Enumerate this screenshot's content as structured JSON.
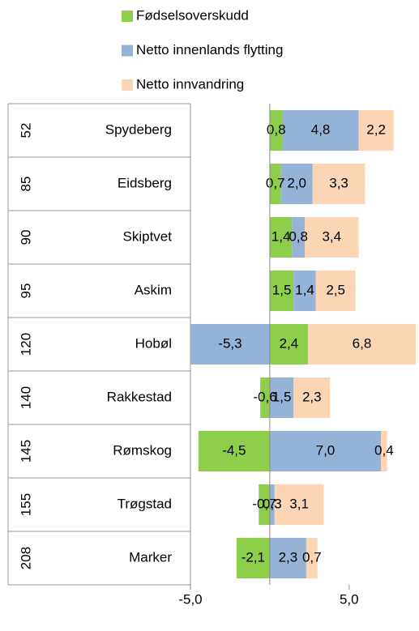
{
  "chart_data": {
    "type": "stacked-barh",
    "categories": [
      "Spydeberg",
      "Eidsberg",
      "Skiptvet",
      "Askim",
      "Hobøl",
      "Rakkestad",
      "Rømskog",
      "Trøgstad",
      "Marker"
    ],
    "ranks": [
      "52",
      "85",
      "90",
      "95",
      "120",
      "140",
      "145",
      "155",
      "208"
    ],
    "series": [
      {
        "name": "Fødselsoverskudd",
        "color": "#8dcf4b",
        "values": [
          0.8,
          0.7,
          1.4,
          1.5,
          2.4,
          -0.6,
          -4.5,
          -0.7,
          -2.1
        ],
        "value_labels": [
          "0,8",
          "0,7",
          "1,4",
          "1,5",
          "2,4",
          "-0,6",
          "-4,5",
          "-0,7",
          "-2,1"
        ]
      },
      {
        "name": "Netto innenlands flytting",
        "color": "#95b3d7",
        "values": [
          4.8,
          2.0,
          0.8,
          1.4,
          -5.3,
          1.5,
          7.0,
          0.3,
          2.3
        ],
        "value_labels": [
          "4,8",
          "2,0",
          "0,8",
          "1,4",
          "-5,3",
          "1,5",
          "7,0",
          "0,3",
          "2,3"
        ]
      },
      {
        "name": "Netto innvandring",
        "color": "#fcd5b5",
        "values": [
          2.2,
          3.3,
          3.4,
          2.5,
          6.8,
          2.3,
          0.4,
          3.1,
          0.7
        ],
        "value_labels": [
          "2,2",
          "3,3",
          "3,4",
          "2,5",
          "6,8",
          "2,3",
          "0,4",
          "3,1",
          "0,7"
        ]
      }
    ],
    "xlim": [
      -5,
      9.3
    ],
    "xticks": [
      {
        "value": -5,
        "label": "-5,0"
      },
      {
        "value": 5,
        "label": "5,0"
      }
    ]
  }
}
